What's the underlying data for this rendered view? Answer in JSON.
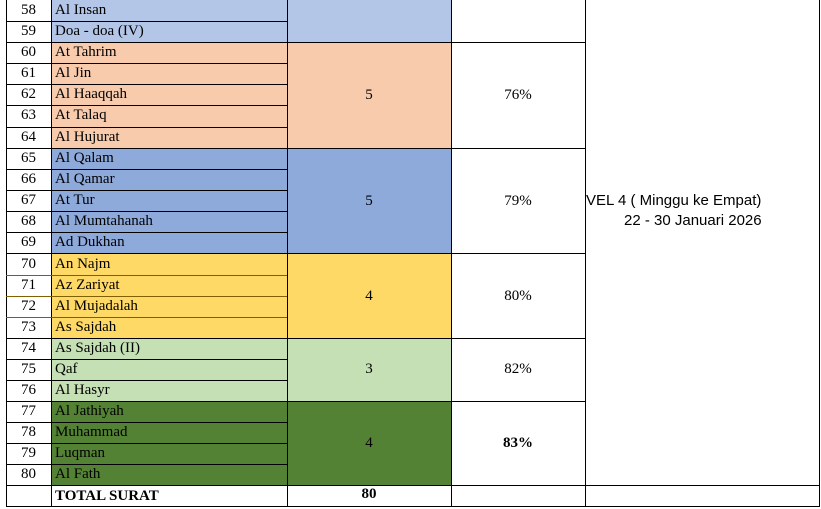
{
  "colors": {
    "blue_light": "#b4c6e7",
    "peach": "#f8cbad",
    "blue": "#8eaadb",
    "yellow": "#ffd966",
    "green_light": "#c5e0b4",
    "green_dark": "#548235",
    "row_line_dark": "#7f6000"
  },
  "rows": [
    {
      "no": "58",
      "surah": "Al Insan"
    },
    {
      "no": "59",
      "surah": "Doa - doa (IV)"
    },
    {
      "no": "60",
      "surah": "At Tahrim"
    },
    {
      "no": "61",
      "surah": "Al Jin"
    },
    {
      "no": "62",
      "surah": "Al Haaqqah"
    },
    {
      "no": "63",
      "surah": "At Talaq"
    },
    {
      "no": "64",
      "surah": "Al Hujurat"
    },
    {
      "no": "65",
      "surah": "Al Qalam"
    },
    {
      "no": "66",
      "surah": "Al Qamar"
    },
    {
      "no": "67",
      "surah": "At Tur"
    },
    {
      "no": "68",
      "surah": "Al Mumtahanah"
    },
    {
      "no": "69",
      "surah": "Ad Dukhan"
    },
    {
      "no": "70",
      "surah": "An Najm"
    },
    {
      "no": "71",
      "surah": "Az Zariyat"
    },
    {
      "no": "72",
      "surah": "Al Mujadalah"
    },
    {
      "no": "73",
      "surah": "As Sajdah"
    },
    {
      "no": "74",
      "surah": "As Sajdah (II)"
    },
    {
      "no": "75",
      "surah": "Qaf"
    },
    {
      "no": "76",
      "surah": "Al Hasyr"
    },
    {
      "no": "77",
      "surah": "Al Jathiyah"
    },
    {
      "no": "78",
      "surah": "Muhammad"
    },
    {
      "no": "79",
      "surah": "Luqman"
    },
    {
      "no": "80",
      "surah": "Al Fath"
    }
  ],
  "groups": [
    {
      "count": "",
      "percent": ""
    },
    {
      "count": "5",
      "percent": "76%"
    },
    {
      "count": "5",
      "percent": "79%"
    },
    {
      "count": "4",
      "percent": "80%"
    },
    {
      "count": "3",
      "percent": "82%"
    },
    {
      "count": "4",
      "percent": "83%"
    }
  ],
  "level": {
    "line1": "VEL 4 ( Minggu ke Empat)",
    "line2": "22 - 30 Januari 2026"
  },
  "total": {
    "label": "TOTAL SURAT",
    "value": "80"
  }
}
